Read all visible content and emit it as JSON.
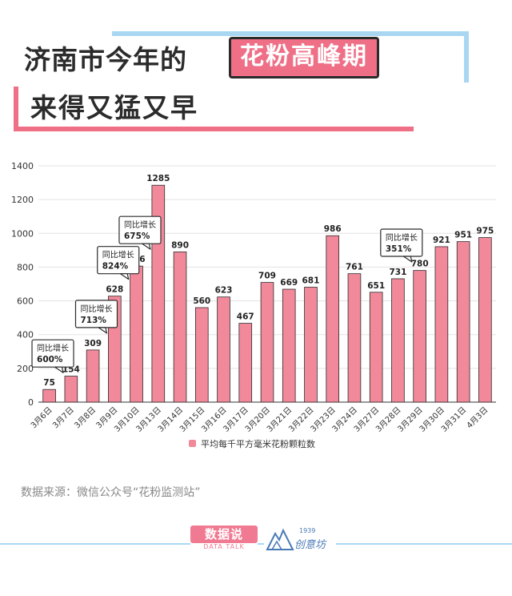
{
  "header": {
    "title_line1": "济南市今年的",
    "title_highlight": "花粉高峰期",
    "title_line2": "来得又猛又早"
  },
  "colors": {
    "bar": "#f2899b",
    "bar_stroke": "#2b2b2b",
    "accent_pink": "#ee6f86",
    "accent_blue": "#a9d7f2"
  },
  "chart_data": {
    "type": "bar",
    "categories": [
      "3月6日",
      "3月7日",
      "3月8日",
      "3月9日",
      "3月10日",
      "3月13日",
      "3月14日",
      "3月15日",
      "3月16日",
      "3月17日",
      "3月20日",
      "3月21日",
      "3月22日",
      "3月23日",
      "3月24日",
      "3月27日",
      "3月28日",
      "3月29日",
      "3月30日",
      "3月31日",
      "4月3日"
    ],
    "series": [
      {
        "name": "平均每千平方毫米花粉颗粒数",
        "values": [
          75,
          154,
          309,
          628,
          806,
          1285,
          890,
          560,
          623,
          467,
          709,
          669,
          681,
          986,
          761,
          651,
          731,
          780,
          921,
          951,
          975
        ]
      }
    ],
    "ylim": [
      0,
      1400
    ],
    "yticks": [
      0,
      200,
      400,
      600,
      800,
      1000,
      1200,
      1400
    ],
    "grid": true,
    "legend": "bottom",
    "annotations": [
      {
        "category": "3月6日",
        "label": "同比增长",
        "value": "600%"
      },
      {
        "category": "3月8日",
        "label": "同比增长",
        "value": "713%"
      },
      {
        "category": "3月9日",
        "label": "同比增长",
        "value": "824%"
      },
      {
        "category": "3月10日",
        "label": "同比增长",
        "value": "675%"
      },
      {
        "category": "3月28日",
        "label": "同比增长",
        "value": "351%"
      }
    ]
  },
  "source": "数据来源：微信公众号“花粉监测站”",
  "footer": {
    "logo1_main": "数据说",
    "logo1_sub": "DATA TALK",
    "logo2_year": "1939",
    "logo2_name": "创意坊"
  }
}
